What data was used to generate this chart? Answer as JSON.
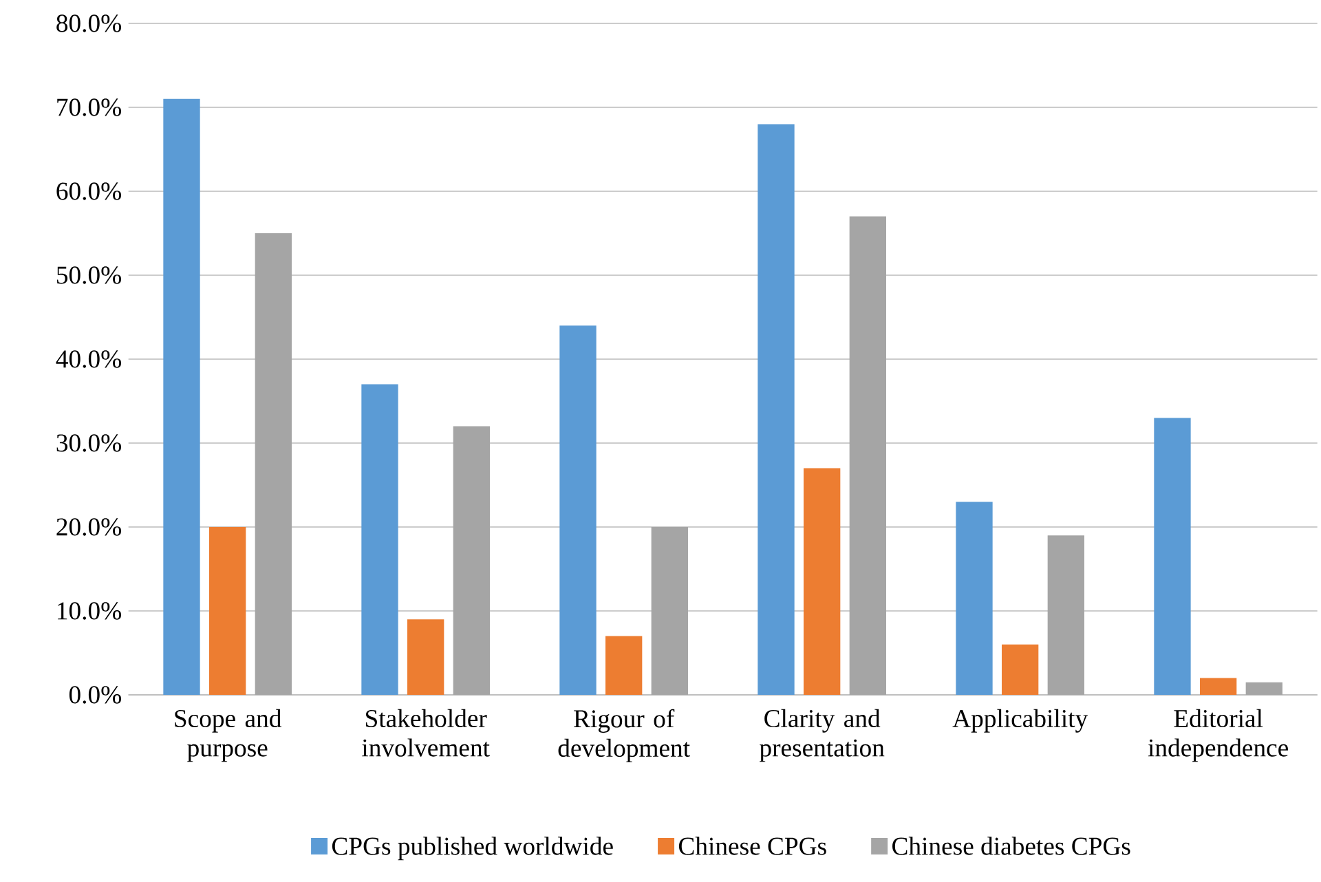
{
  "chart_data": {
    "type": "bar",
    "categories": [
      "Scope and purpose",
      "Stakeholder involvement",
      "Rigour of development",
      "Clarity and presentation",
      "Applicability",
      "Editorial independence"
    ],
    "series": [
      {
        "name": "CPGs published worldwide",
        "color": "#5b9bd5",
        "values": [
          71,
          37,
          44,
          68,
          23,
          33
        ]
      },
      {
        "name": "Chinese CPGs",
        "color": "#ed7d31",
        "values": [
          20,
          9,
          7,
          27,
          6,
          2
        ]
      },
      {
        "name": "Chinese diabetes CPGs",
        "color": "#a5a5a5",
        "values": [
          55,
          32,
          20,
          57,
          19,
          1.5
        ]
      }
    ],
    "ylim": [
      0,
      80
    ],
    "yticks": [
      {
        "value": 0,
        "label": "0.0%"
      },
      {
        "value": 10,
        "label": "10.0%"
      },
      {
        "value": 20,
        "label": "20.0%"
      },
      {
        "value": 30,
        "label": "30.0%"
      },
      {
        "value": 40,
        "label": "40.0%"
      },
      {
        "value": 50,
        "label": "50.0%"
      },
      {
        "value": 60,
        "label": "60.0%"
      },
      {
        "value": 70,
        "label": "70.0%"
      },
      {
        "value": 80,
        "label": "80.0%"
      }
    ],
    "grid": "y",
    "legend": "bottom"
  }
}
